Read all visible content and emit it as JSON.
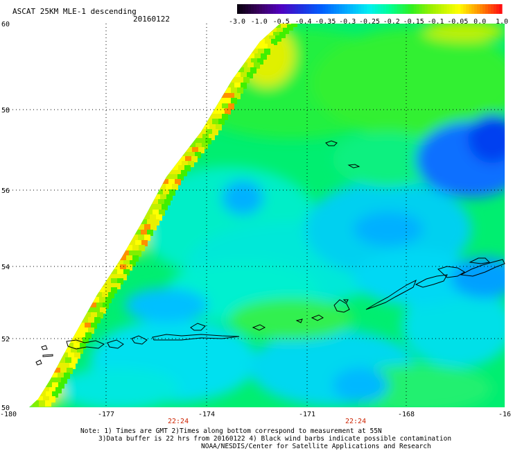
{
  "header": {
    "title": "ASCAT 25KM MLE-1 descending",
    "date": "20160122"
  },
  "colorbar": {
    "labels": [
      "-3.0",
      "-1.0",
      "-0.5",
      "-0.4",
      "-0.35",
      "-0.3",
      "-0.25",
      "-0.2",
      "-0.15",
      "-0.1",
      "-0.05",
      "0.0",
      "1.0"
    ],
    "colors": [
      "#1a0030",
      "#40006a",
      "#5a00b0",
      "#2a28d8",
      "#0a70ff",
      "#00b8ff",
      "#00f0f0",
      "#00ff80",
      "#40f000",
      "#b8f000",
      "#ffff00",
      "#ff9000",
      "#ff2000"
    ]
  },
  "axes": {
    "lat_labels": [
      "60",
      "58",
      "56",
      "54",
      "52",
      "50"
    ],
    "lon_labels": [
      "-180",
      "-177",
      "-174",
      "-171",
      "-168",
      "-16"
    ]
  },
  "times": [
    "22:24",
    "22:24"
  ],
  "notes": {
    "line1": "Note: 1) Times are GMT 2)Times along bottom correspond to measurement at 55N",
    "line2": "3)Data buffer is 22 hrs from 20160122 4) Black wind barbs indicate possible contamination",
    "line3": "NOAA/NESDIS/Center for Satellite Applications and Research"
  }
}
